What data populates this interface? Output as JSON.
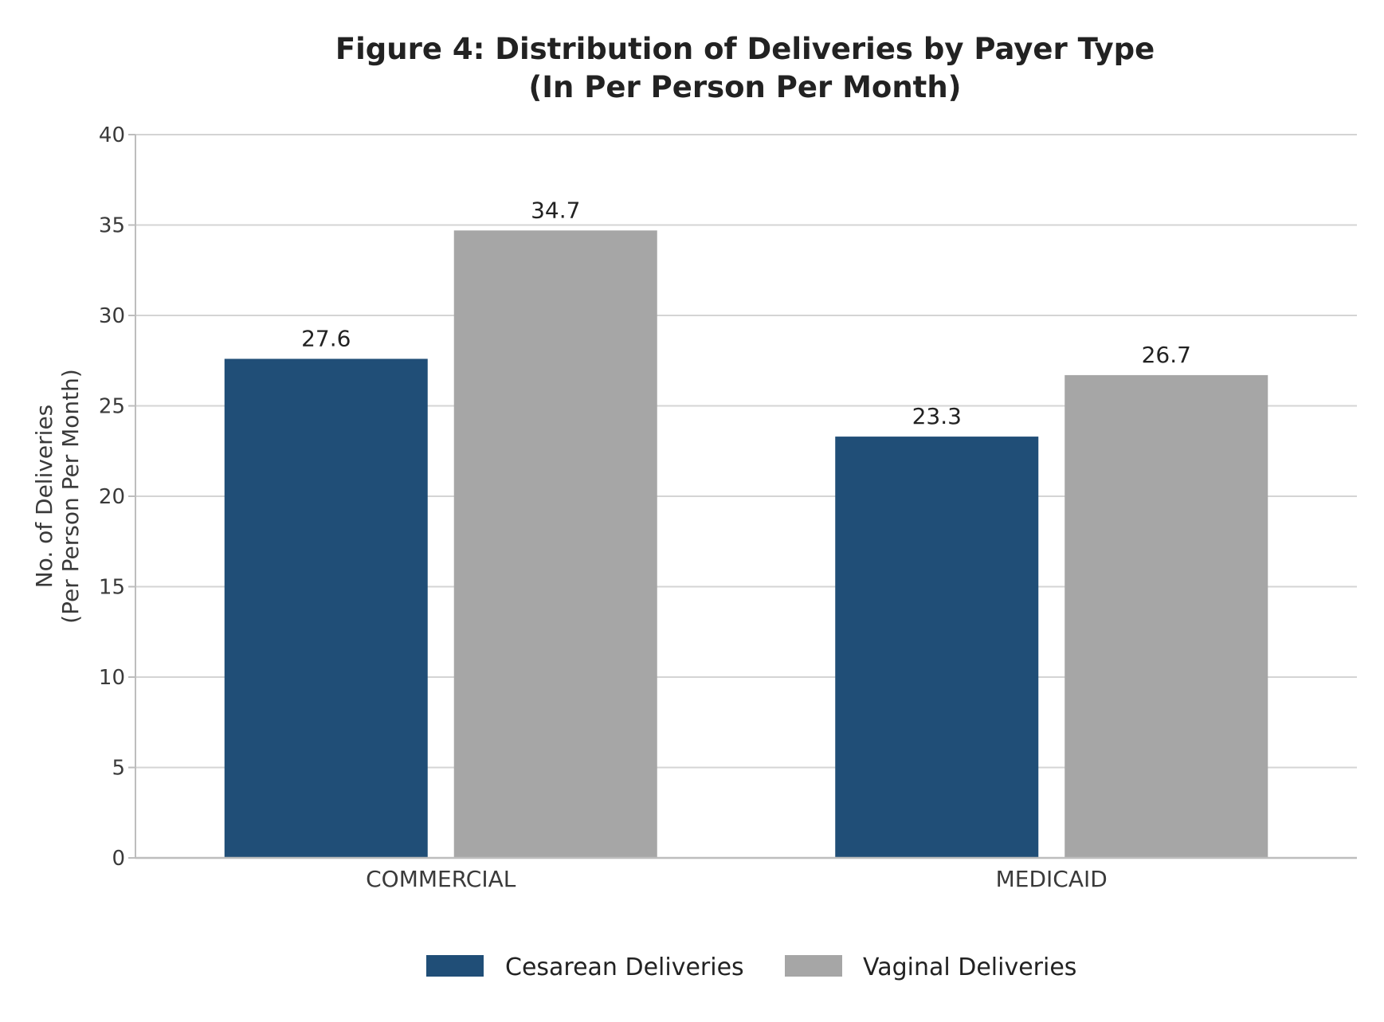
{
  "chart_data": {
    "type": "bar",
    "title_lines": [
      "Figure 4: Distribution of Deliveries by Payer Type",
      "(In Per Person Per Month)"
    ],
    "ylabel_lines": [
      "No. of Deliveries",
      "(Per Person Per Month)"
    ],
    "xlabel": "",
    "categories": [
      "COMMERCIAL",
      "MEDICAID"
    ],
    "series": [
      {
        "name": "Cesarean Deliveries",
        "values": [
          27.6,
          23.3
        ],
        "labels": [
          "27.6",
          "23.3"
        ],
        "color": "#204e77"
      },
      {
        "name": "Vaginal Deliveries",
        "values": [
          34.7,
          26.7
        ],
        "labels": [
          "34.7",
          "26.7"
        ],
        "color": "#a6a6a6"
      }
    ],
    "ylim": [
      0,
      40
    ],
    "yticks": [
      0,
      5,
      10,
      15,
      20,
      25,
      30,
      35,
      40
    ],
    "grid": true,
    "legend_position": "bottom"
  }
}
